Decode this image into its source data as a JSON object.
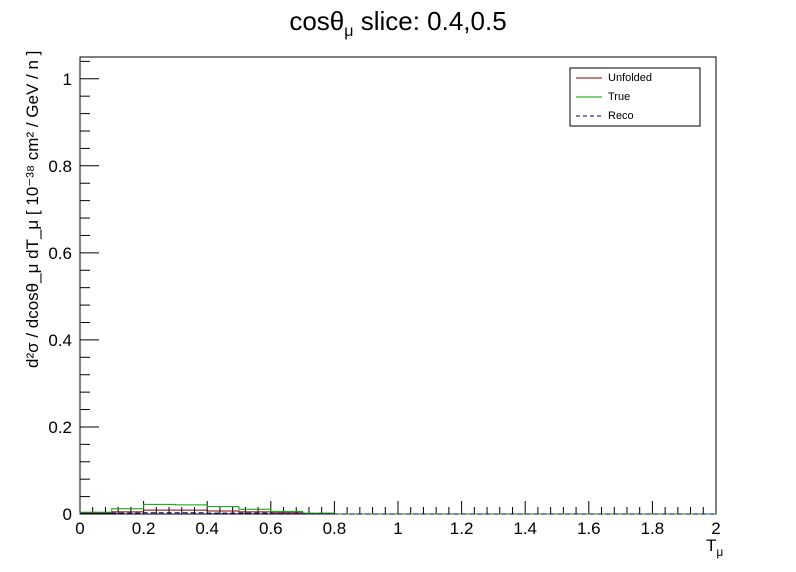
{
  "chart_data": {
    "type": "line",
    "title": "cosθ",
    "title_sub": "μ",
    "title_rest": " slice: 0.4,0.5",
    "xlabel_main": "T",
    "xlabel_sub": "μ",
    "ylabel": "d²σ / dcosθ_μ dT_μ [ 10⁻³⁸ cm² / GeV / n ]",
    "xlim": [
      0,
      2
    ],
    "ylim": [
      0,
      1.05
    ],
    "x_ticks": [
      "0",
      "0.2",
      "0.4",
      "0.6",
      "0.8",
      "1",
      "1.2",
      "1.4",
      "1.6",
      "1.8",
      "2"
    ],
    "y_ticks": [
      "0",
      "0.2",
      "0.4",
      "0.6",
      "0.8",
      "1"
    ],
    "bin_edges": [
      0.0,
      0.1,
      0.2,
      0.3,
      0.4,
      0.5,
      0.6,
      0.7,
      0.8,
      2.0
    ],
    "series": [
      {
        "name": "Unfolded",
        "color": "#800000",
        "style": "solid",
        "values": [
          0.002,
          0.005,
          0.009,
          0.009,
          0.007,
          0.005,
          0.003,
          0.001,
          0.0
        ]
      },
      {
        "name": "True",
        "color": "#00a000",
        "style": "solid",
        "values": [
          0.004,
          0.012,
          0.022,
          0.021,
          0.017,
          0.011,
          0.006,
          0.002,
          0.0
        ]
      },
      {
        "name": "Reco",
        "color": "#000080",
        "style": "dashed",
        "values": [
          0.001,
          0.002,
          0.003,
          0.003,
          0.002,
          0.002,
          0.001,
          0.0,
          0.0
        ]
      }
    ],
    "legend_position": "top-right",
    "grid": false
  }
}
